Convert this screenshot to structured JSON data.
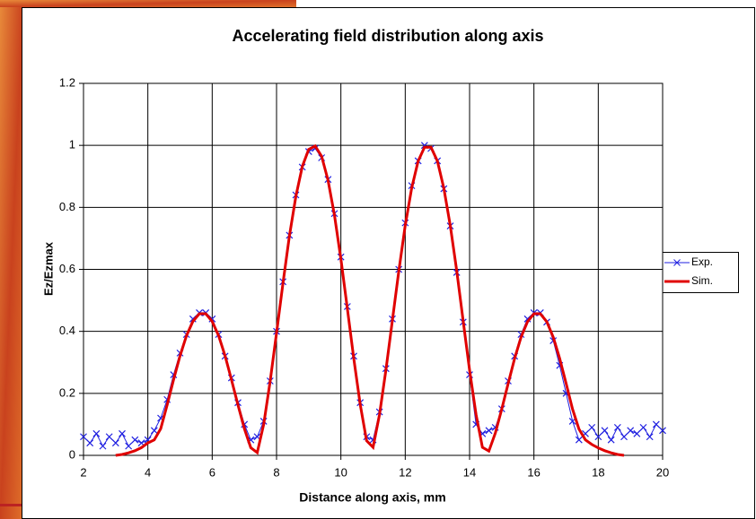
{
  "chart_data": {
    "type": "line",
    "title": "Accelerating field distribution along axis",
    "x_label": "Distance along axis, mm",
    "y_label": "Ez/Ezmax",
    "xlim": [
      2,
      20
    ],
    "xticks": [
      2,
      4,
      6,
      8,
      10,
      12,
      14,
      16,
      18,
      20
    ],
    "ylim": [
      0,
      1.2
    ],
    "yticks": [
      0,
      0.2,
      0.4,
      0.6,
      0.8,
      1,
      1.2
    ],
    "grid": true,
    "legend": "right",
    "series": [
      {
        "name": "Exp.",
        "color": "#1f1fe0",
        "marker": "x",
        "x": [
          2,
          2.2,
          2.4,
          2.6,
          2.8,
          3,
          3.2,
          3.4,
          3.6,
          3.8,
          4,
          4.2,
          4.4,
          4.6,
          4.8,
          5,
          5.2,
          5.4,
          5.6,
          5.8,
          6,
          6.2,
          6.4,
          6.6,
          6.8,
          7,
          7.2,
          7.4,
          7.6,
          7.8,
          8,
          8.2,
          8.4,
          8.6,
          8.8,
          9,
          9.2,
          9.4,
          9.6,
          9.8,
          10,
          10.2,
          10.4,
          10.6,
          10.8,
          11,
          11.2,
          11.4,
          11.6,
          11.8,
          12,
          12.2,
          12.4,
          12.6,
          12.8,
          13,
          13.2,
          13.4,
          13.6,
          13.8,
          14,
          14.2,
          14.4,
          14.6,
          14.8,
          15,
          15.2,
          15.4,
          15.6,
          15.8,
          16,
          16.2,
          16.4,
          16.6,
          16.8,
          17,
          17.2,
          17.4,
          17.6,
          17.8,
          18,
          18.2,
          18.4,
          18.6,
          18.8,
          19,
          19.2,
          19.4,
          19.6,
          19.8,
          20
        ],
        "values": [
          0.06,
          0.04,
          0.07,
          0.03,
          0.06,
          0.04,
          0.07,
          0.03,
          0.05,
          0.04,
          0.05,
          0.08,
          0.12,
          0.18,
          0.26,
          0.33,
          0.39,
          0.44,
          0.46,
          0.46,
          0.44,
          0.39,
          0.32,
          0.25,
          0.17,
          0.1,
          0.05,
          0.06,
          0.11,
          0.24,
          0.4,
          0.56,
          0.71,
          0.84,
          0.93,
          0.98,
          0.99,
          0.96,
          0.89,
          0.78,
          0.64,
          0.48,
          0.32,
          0.17,
          0.06,
          0.05,
          0.14,
          0.28,
          0.44,
          0.6,
          0.75,
          0.87,
          0.95,
          1.0,
          0.99,
          0.95,
          0.86,
          0.74,
          0.59,
          0.43,
          0.26,
          0.1,
          0.07,
          0.08,
          0.09,
          0.15,
          0.24,
          0.32,
          0.39,
          0.44,
          0.46,
          0.46,
          0.43,
          0.37,
          0.29,
          0.2,
          0.11,
          0.05,
          0.07,
          0.09,
          0.06,
          0.08,
          0.05,
          0.09,
          0.06,
          0.08,
          0.07,
          0.09,
          0.06,
          0.1,
          0.08
        ]
      },
      {
        "name": "Sim.",
        "color": "#e00000",
        "marker": "none",
        "x": [
          3,
          3.2,
          3.4,
          3.6,
          3.8,
          4,
          4.2,
          4.4,
          4.6,
          4.8,
          5,
          5.2,
          5.4,
          5.6,
          5.8,
          6,
          6.2,
          6.4,
          6.6,
          6.8,
          7,
          7.2,
          7.4,
          7.6,
          7.8,
          8,
          8.2,
          8.4,
          8.6,
          8.8,
          9,
          9.2,
          9.4,
          9.6,
          9.8,
          10,
          10.2,
          10.4,
          10.6,
          10.8,
          11,
          11.2,
          11.4,
          11.6,
          11.8,
          12,
          12.2,
          12.4,
          12.6,
          12.8,
          13,
          13.2,
          13.4,
          13.6,
          13.8,
          14,
          14.2,
          14.4,
          14.6,
          14.8,
          15,
          15.2,
          15.4,
          15.6,
          15.8,
          16,
          16.2,
          16.4,
          16.6,
          16.8,
          17,
          17.2,
          17.4,
          17.6,
          17.8,
          18,
          18.2,
          18.4,
          18.6,
          18.8
        ],
        "values": [
          0,
          0.003,
          0.008,
          0.015,
          0.025,
          0.04,
          0.05,
          0.086,
          0.163,
          0.244,
          0.321,
          0.386,
          0.432,
          0.457,
          0.457,
          0.432,
          0.386,
          0.321,
          0.244,
          0.163,
          0.086,
          0.025,
          0.009,
          0.1,
          0.237,
          0.395,
          0.556,
          0.707,
          0.835,
          0.932,
          0.987,
          0.998,
          0.965,
          0.888,
          0.775,
          0.633,
          0.475,
          0.313,
          0.164,
          0.047,
          0.026,
          0.132,
          0.275,
          0.435,
          0.595,
          0.741,
          0.862,
          0.949,
          0.994,
          0.994,
          0.949,
          0.862,
          0.741,
          0.595,
          0.435,
          0.275,
          0.132,
          0.026,
          0.014,
          0.072,
          0.149,
          0.232,
          0.313,
          0.381,
          0.431,
          0.457,
          0.457,
          0.431,
          0.381,
          0.313,
          0.232,
          0.149,
          0.085,
          0.05,
          0.035,
          0.024,
          0.015,
          0.008,
          0.003,
          0
        ]
      }
    ]
  }
}
